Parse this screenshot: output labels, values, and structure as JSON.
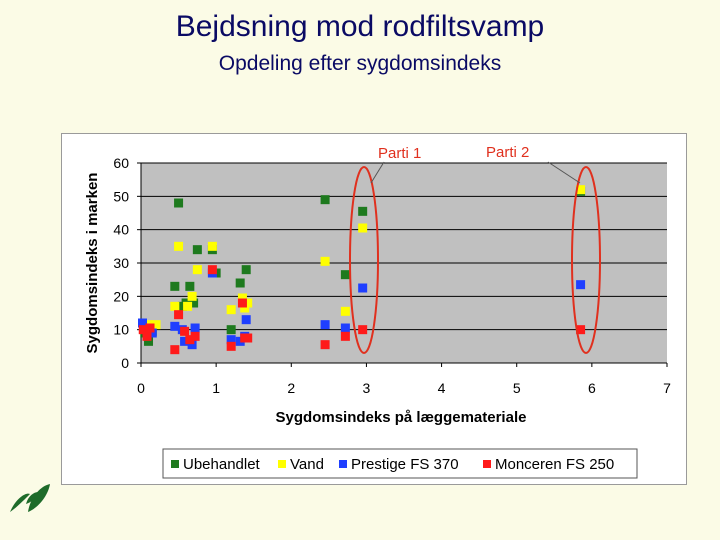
{
  "slide": {
    "title": "Bejdsning mod rodfiltsvamp",
    "subtitle": "Opdeling efter sygdomsindeks"
  },
  "colors": {
    "title": "#0a0a64",
    "plot_bg": "#c0c0c0",
    "callout": "#e0301e",
    "ubehandlet": "#1e7a1e",
    "vand": "#ffff00",
    "prestige": "#1f3fff",
    "monceren": "#ff1a1a"
  },
  "annotations": {
    "parti1": "Parti 1",
    "parti2": "Parti 2"
  },
  "chart_data": {
    "type": "scatter",
    "title": "",
    "xlabel": "Sygdomsindeks på læggemateriale",
    "ylabel": "Sygdomsindeks i marken",
    "xlim": [
      0,
      7
    ],
    "ylim": [
      0,
      60
    ],
    "x_ticks": [
      0,
      1,
      2,
      3,
      4,
      5,
      6,
      7
    ],
    "y_ticks": [
      0,
      10,
      20,
      30,
      40,
      50,
      60
    ],
    "grid": "horizontal",
    "legend_position": "bottom",
    "series": [
      {
        "name": "Ubehandlet",
        "color": "#1e7a1e",
        "points": [
          [
            0.05,
            9
          ],
          [
            0.1,
            6.5
          ],
          [
            0.15,
            9.5
          ],
          [
            0.45,
            23
          ],
          [
            0.5,
            48
          ],
          [
            0.55,
            17
          ],
          [
            0.6,
            18
          ],
          [
            0.65,
            23
          ],
          [
            0.7,
            18
          ],
          [
            0.75,
            34
          ],
          [
            0.95,
            34
          ],
          [
            1.0,
            27
          ],
          [
            1.2,
            10
          ],
          [
            1.32,
            24
          ],
          [
            1.4,
            28
          ],
          [
            2.45,
            49
          ],
          [
            2.72,
            26.5
          ],
          [
            2.95,
            45.5
          ],
          [
            5.85,
            51.5
          ]
        ]
      },
      {
        "name": "Vand",
        "color": "#ffff00",
        "points": [
          [
            0.1,
            11.5
          ],
          [
            0.2,
            11.5
          ],
          [
            0.45,
            17
          ],
          [
            0.5,
            35
          ],
          [
            0.62,
            17
          ],
          [
            0.68,
            20
          ],
          [
            0.75,
            28
          ],
          [
            0.95,
            35
          ],
          [
            1.2,
            16
          ],
          [
            1.35,
            19.5
          ],
          [
            1.38,
            16.5
          ],
          [
            1.42,
            18
          ],
          [
            2.45,
            30.5
          ],
          [
            2.72,
            15.5
          ],
          [
            2.95,
            40.5
          ],
          [
            5.85,
            52
          ]
        ]
      },
      {
        "name": "Prestige FS 370",
        "color": "#1f3fff",
        "points": [
          [
            0.02,
            12
          ],
          [
            0.15,
            9
          ],
          [
            0.45,
            11
          ],
          [
            0.55,
            10
          ],
          [
            0.58,
            6.5
          ],
          [
            0.68,
            5.5
          ],
          [
            0.72,
            10.5
          ],
          [
            0.95,
            27
          ],
          [
            1.2,
            7
          ],
          [
            1.32,
            6.5
          ],
          [
            1.38,
            8
          ],
          [
            1.4,
            13
          ],
          [
            2.45,
            11.5
          ],
          [
            2.72,
            10.5
          ],
          [
            2.95,
            22.5
          ],
          [
            5.85,
            23.5
          ]
        ]
      },
      {
        "name": "Monceren FS 250",
        "color": "#ff1a1a",
        "points": [
          [
            0.03,
            10
          ],
          [
            0.08,
            8
          ],
          [
            0.12,
            10.5
          ],
          [
            0.45,
            4
          ],
          [
            0.5,
            14.5
          ],
          [
            0.58,
            9.5
          ],
          [
            0.65,
            7
          ],
          [
            0.72,
            8
          ],
          [
            0.95,
            28
          ],
          [
            1.2,
            5
          ],
          [
            1.35,
            18
          ],
          [
            1.38,
            7.5
          ],
          [
            1.42,
            7.5
          ],
          [
            2.45,
            5.5
          ],
          [
            2.72,
            8
          ],
          [
            2.95,
            10
          ],
          [
            5.85,
            10
          ]
        ]
      }
    ]
  }
}
